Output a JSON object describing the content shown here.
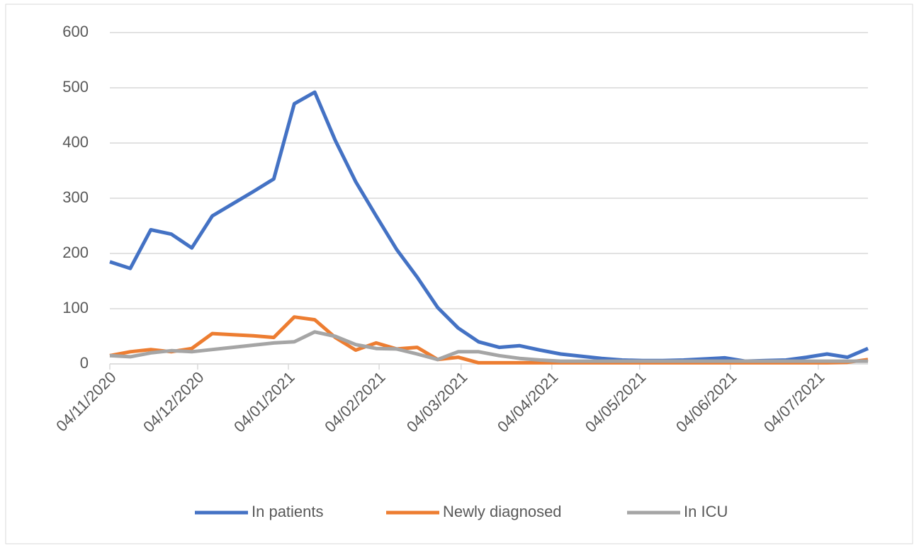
{
  "chart_data": {
    "type": "line",
    "x": [
      "04/11/2020",
      "11/11/2020",
      "18/11/2020",
      "25/11/2020",
      "02/12/2020",
      "09/12/2020",
      "16/12/2020",
      "23/12/2020",
      "30/12/2020",
      "06/01/2021",
      "13/01/2021",
      "20/01/2021",
      "27/01/2021",
      "03/02/2021",
      "10/02/2021",
      "17/02/2021",
      "24/02/2021",
      "03/03/2021",
      "10/03/2021",
      "17/03/2021",
      "24/03/2021",
      "31/03/2021",
      "07/04/2021",
      "14/04/2021",
      "21/04/2021",
      "28/04/2021",
      "05/05/2021",
      "12/05/2021",
      "19/05/2021",
      "26/05/2021",
      "02/06/2021",
      "09/06/2021",
      "16/06/2021",
      "23/06/2021",
      "30/06/2021",
      "07/07/2021",
      "14/07/2021",
      "21/07/2021"
    ],
    "series": [
      {
        "name": "In patients",
        "color": "#4472c4",
        "values": [
          185,
          173,
          243,
          235,
          210,
          268,
          290,
          312,
          335,
          471,
          492,
          405,
          330,
          268,
          207,
          157,
          102,
          65,
          40,
          30,
          33,
          25,
          18,
          14,
          10,
          7,
          6,
          6,
          7,
          9,
          11,
          5,
          6,
          7,
          12,
          18,
          12,
          28
        ]
      },
      {
        "name": "Newly diagnosed",
        "color": "#ed7d31",
        "values": [
          15,
          22,
          26,
          22,
          28,
          55,
          53,
          51,
          48,
          85,
          80,
          48,
          25,
          38,
          27,
          30,
          8,
          12,
          2,
          2,
          2,
          2,
          2,
          2,
          2,
          2,
          2,
          2,
          2,
          2,
          2,
          2,
          2,
          2,
          2,
          2,
          3,
          8
        ]
      },
      {
        "name": "In ICU",
        "color": "#a5a5a5",
        "values": [
          15,
          13,
          20,
          24,
          22,
          26,
          30,
          34,
          38,
          40,
          58,
          50,
          35,
          28,
          27,
          18,
          8,
          22,
          22,
          15,
          10,
          7,
          5,
          5,
          5,
          5,
          5,
          5,
          5,
          5,
          5,
          5,
          5,
          5,
          5,
          5,
          5,
          5
        ]
      }
    ],
    "xlim": [
      "04/11/2020",
      "21/07/2021"
    ],
    "xticks": [
      "04/11/2020",
      "04/12/2020",
      "04/01/2021",
      "04/02/2021",
      "04/03/2021",
      "04/04/2021",
      "04/05/2021",
      "04/06/2021",
      "04/07/2021"
    ],
    "ylim": [
      0,
      600
    ],
    "yticks": [
      0,
      100,
      200,
      300,
      400,
      500,
      600
    ],
    "grid": true,
    "legend": "bottom"
  }
}
